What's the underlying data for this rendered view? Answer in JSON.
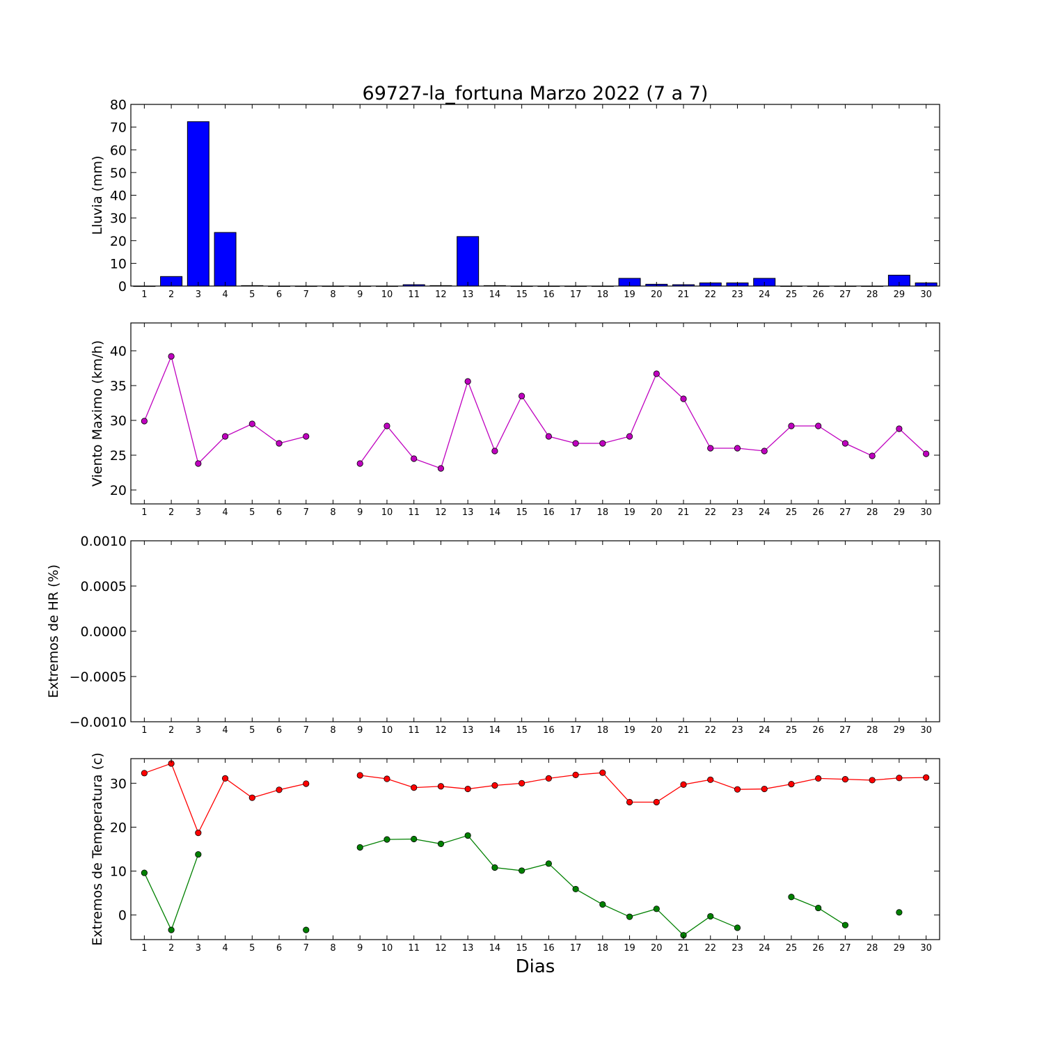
{
  "figure": {
    "title": "69727-la_fortuna Marzo 2022  (7 a 7)",
    "xlabel": "Dias"
  },
  "chart_data": [
    {
      "type": "bar",
      "ylabel": "Lluvia (mm)",
      "ylim": [
        0,
        80
      ],
      "yticks": [
        0,
        10,
        20,
        30,
        40,
        50,
        60,
        70,
        80
      ],
      "x": [
        1,
        2,
        3,
        4,
        5,
        6,
        7,
        8,
        9,
        10,
        11,
        12,
        13,
        14,
        15,
        16,
        17,
        18,
        19,
        20,
        21,
        22,
        23,
        24,
        25,
        26,
        27,
        28,
        29,
        30
      ],
      "values": [
        0,
        4.2,
        72.4,
        23.6,
        0.2,
        0,
        0,
        0,
        0,
        0,
        0.6,
        0.2,
        21.8,
        0.2,
        0,
        0,
        0,
        0,
        3.4,
        0.8,
        0.6,
        1.4,
        1.4,
        3.4,
        0,
        0,
        0,
        0,
        4.8,
        1.4
      ],
      "color": "#0000ff"
    },
    {
      "type": "line",
      "ylabel": "Viento Maximo (km/h)",
      "ylim": [
        18,
        44
      ],
      "yticks": [
        20,
        25,
        30,
        35,
        40
      ],
      "x": [
        1,
        2,
        3,
        4,
        5,
        6,
        7,
        8,
        9,
        10,
        11,
        12,
        13,
        14,
        15,
        16,
        17,
        18,
        19,
        20,
        21,
        22,
        23,
        24,
        25,
        26,
        27,
        28,
        29,
        30
      ],
      "series": [
        {
          "values": [
            29.9,
            39.2,
            23.8,
            27.7,
            29.5,
            26.7,
            27.7,
            null,
            23.8,
            29.2,
            24.5,
            23.1,
            35.6,
            25.6,
            33.5,
            27.7,
            26.7,
            26.7,
            27.7,
            36.7,
            33.1,
            26.0,
            26.0,
            25.6,
            29.2,
            29.2,
            26.7,
            24.9,
            28.8,
            25.2
          ],
          "color": "#bf00bf"
        }
      ]
    },
    {
      "type": "line",
      "ylabel": "Extremos de HR (%)",
      "ylim": [
        -0.001,
        0.001
      ],
      "yticks": [
        -0.001,
        -0.0005,
        0.0,
        0.0005,
        0.001
      ],
      "ytick_labels": [
        "−0.0010",
        "−0.0005",
        "0.0000",
        "0.0005",
        "0.0010"
      ],
      "x": [
        1,
        2,
        3,
        4,
        5,
        6,
        7,
        8,
        9,
        10,
        11,
        12,
        13,
        14,
        15,
        16,
        17,
        18,
        19,
        20,
        21,
        22,
        23,
        24,
        25,
        26,
        27,
        28,
        29,
        30
      ],
      "series": []
    },
    {
      "type": "line",
      "ylabel": "Extremos de Temperatura (c)",
      "ylim": [
        -5.6,
        35.6
      ],
      "yticks": [
        0,
        10,
        20,
        30
      ],
      "x": [
        1,
        2,
        3,
        4,
        5,
        6,
        7,
        8,
        9,
        10,
        11,
        12,
        13,
        14,
        15,
        16,
        17,
        18,
        19,
        20,
        21,
        22,
        23,
        24,
        25,
        26,
        27,
        28,
        29,
        30
      ],
      "series": [
        {
          "values": [
            32.3,
            34.5,
            18.7,
            31.1,
            26.7,
            28.5,
            29.9,
            null,
            31.8,
            31.0,
            29.0,
            29.3,
            28.7,
            29.5,
            30.0,
            31.1,
            31.9,
            32.4,
            25.7,
            25.7,
            29.7,
            30.8,
            28.6,
            28.7,
            29.8,
            31.1,
            30.9,
            30.7,
            31.2,
            31.3
          ],
          "color": "#ff0000"
        },
        {
          "values": [
            9.6,
            -3.4,
            13.8,
            null,
            null,
            null,
            -3.4,
            null,
            15.4,
            17.2,
            17.3,
            16.2,
            18.1,
            10.8,
            10.1,
            11.7,
            5.9,
            2.4,
            -0.4,
            1.4,
            -4.6,
            -0.3,
            -2.9,
            null,
            4.1,
            1.6,
            -2.3,
            null,
            0.6,
            null
          ],
          "color": "#008000"
        }
      ]
    }
  ]
}
